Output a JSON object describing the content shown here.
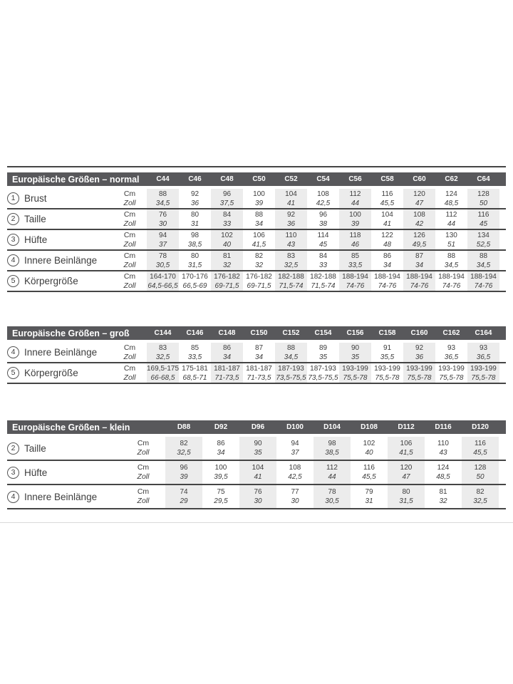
{
  "colors": {
    "header_bg": "#58585b",
    "header_text": "#ffffff",
    "body_text": "#3d3d3d",
    "column_shade": "#ececec",
    "row_line": "#454545",
    "divider_line": "#d9d9d9"
  },
  "units": {
    "cm_label": "Cm",
    "zoll_label": "Zoll"
  },
  "tables": [
    {
      "title": "Europäische Größen – normal",
      "sizes": [
        "C44",
        "C46",
        "C48",
        "C50",
        "C52",
        "C54",
        "C56",
        "C58",
        "C60",
        "C62",
        "C64"
      ],
      "rows": [
        {
          "num": "1",
          "label": "Brust",
          "cm": [
            "88",
            "92",
            "96",
            "100",
            "104",
            "108",
            "112",
            "116",
            "120",
            "124",
            "128"
          ],
          "zoll": [
            "34,5",
            "36",
            "37,5",
            "39",
            "41",
            "42,5",
            "44",
            "45,5",
            "47",
            "48,5",
            "50"
          ]
        },
        {
          "num": "2",
          "label": "Taille",
          "cm": [
            "76",
            "80",
            "84",
            "88",
            "92",
            "96",
            "100",
            "104",
            "108",
            "112",
            "116"
          ],
          "zoll": [
            "30",
            "31",
            "33",
            "34",
            "36",
            "38",
            "39",
            "41",
            "42",
            "44",
            "45"
          ]
        },
        {
          "num": "3",
          "label": "Hüfte",
          "cm": [
            "94",
            "98",
            "102",
            "106",
            "110",
            "114",
            "118",
            "122",
            "126",
            "130",
            "134"
          ],
          "zoll": [
            "37",
            "38,5",
            "40",
            "41,5",
            "43",
            "45",
            "46",
            "48",
            "49,5",
            "51",
            "52,5"
          ]
        },
        {
          "num": "4",
          "label": "Innere Beinlänge",
          "cm": [
            "78",
            "80",
            "81",
            "82",
            "83",
            "84",
            "85",
            "86",
            "87",
            "88",
            "88"
          ],
          "zoll": [
            "30,5",
            "31,5",
            "32",
            "32",
            "32,5",
            "33",
            "33,5",
            "34",
            "34",
            "34,5",
            "34,5"
          ]
        },
        {
          "num": "5",
          "label": "Körpergröße",
          "cm": [
            "164-170",
            "170-176",
            "176-182",
            "176-182",
            "182-188",
            "182-188",
            "188-194",
            "188-194",
            "188-194",
            "188-194",
            "188-194"
          ],
          "zoll": [
            "64,5-66,5",
            "66,5-69",
            "69-71,5",
            "69-71,5",
            "71,5-74",
            "71,5-74",
            "74-76",
            "74-76",
            "74-76",
            "74-76",
            "74-76"
          ]
        }
      ]
    },
    {
      "title": "Europäische Größen – groß",
      "sizes": [
        "C144",
        "C146",
        "C148",
        "C150",
        "C152",
        "C154",
        "C156",
        "C158",
        "C160",
        "C162",
        "C164"
      ],
      "rows": [
        {
          "num": "4",
          "label": "Innere Beinlänge",
          "cm": [
            "83",
            "85",
            "86",
            "87",
            "88",
            "89",
            "90",
            "91",
            "92",
            "93",
            "93"
          ],
          "zoll": [
            "32,5",
            "33,5",
            "34",
            "34",
            "34,5",
            "35",
            "35",
            "35,5",
            "36",
            "36,5",
            "36,5"
          ]
        },
        {
          "num": "5",
          "label": "Körpergröße",
          "cm": [
            "169,5-175",
            "175-181",
            "181-187",
            "181-187",
            "187-193",
            "187-193",
            "193-199",
            "193-199",
            "193-199",
            "193-199",
            "193-199"
          ],
          "zoll": [
            "66-68,5",
            "68,5-71",
            "71-73,5",
            "71-73,5",
            "73,5-75,5",
            "73,5-75,5",
            "75,5-78",
            "75,5-78",
            "75,5-78",
            "75,5-78",
            "75,5-78"
          ]
        }
      ]
    },
    {
      "title": "Europäische Größen – klein",
      "sizes": [
        "D88",
        "D92",
        "D96",
        "D100",
        "D104",
        "D108",
        "D112",
        "D116",
        "D120"
      ],
      "rows": [
        {
          "num": "2",
          "label": "Taille",
          "cm": [
            "82",
            "86",
            "90",
            "94",
            "98",
            "102",
            "106",
            "110",
            "116"
          ],
          "zoll": [
            "32,5",
            "34",
            "35",
            "37",
            "38,5",
            "40",
            "41,5",
            "43",
            "45,5"
          ]
        },
        {
          "num": "3",
          "label": "Hüfte",
          "cm": [
            "96",
            "100",
            "104",
            "108",
            "112",
            "116",
            "120",
            "124",
            "128"
          ],
          "zoll": [
            "39",
            "39,5",
            "41",
            "42,5",
            "44",
            "45,5",
            "47",
            "48,5",
            "50"
          ]
        },
        {
          "num": "4",
          "label": "Innere Beinlänge",
          "cm": [
            "74",
            "75",
            "76",
            "77",
            "78",
            "79",
            "80",
            "81",
            "82"
          ],
          "zoll": [
            "29",
            "29,5",
            "30",
            "30",
            "30,5",
            "31",
            "31,5",
            "32",
            "32,5"
          ]
        }
      ]
    }
  ]
}
